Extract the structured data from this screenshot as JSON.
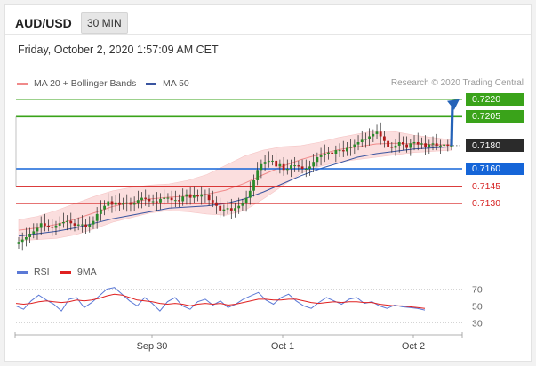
{
  "header": {
    "symbol": "AUD/USD",
    "timeframe": "30 MIN"
  },
  "datetime": "Friday, October 2, 2020 1:57:09 AM CET",
  "legend": {
    "ma20": {
      "label": "MA 20 + Bollinger Bands",
      "color": "#f08a8a"
    },
    "ma50": {
      "label": "MA 50",
      "color": "#3a55a0"
    }
  },
  "credit": "Research © 2020 Trading Central",
  "rsi_legend": {
    "rsi": {
      "label": "RSI",
      "color": "#5b79d6"
    },
    "ma9": {
      "label": "9MA",
      "color": "#e02020"
    }
  },
  "chart_data": [
    {
      "type": "candlestick",
      "title": "AUD/USD 30 MIN",
      "ylim": [
        0.7091,
        0.7229
      ],
      "x_ticks": [
        "Sep 30",
        "Oct 1",
        "Oct 2"
      ],
      "levels": [
        {
          "value": 0.722,
          "label": "0.7220",
          "kind": "resistance",
          "color": "#3aa31a"
        },
        {
          "value": 0.7205,
          "label": "0.7205",
          "kind": "resistance",
          "color": "#3aa31a"
        },
        {
          "value": 0.718,
          "label": "0.7180",
          "kind": "last",
          "color": "#2b2b2b"
        },
        {
          "value": 0.716,
          "label": "0.7160",
          "kind": "pivot",
          "color": "#1565d8"
        },
        {
          "value": 0.7145,
          "label": "0.7145",
          "kind": "support",
          "color": "#d62020"
        },
        {
          "value": 0.713,
          "label": "0.7130",
          "kind": "support",
          "color": "#d62020"
        }
      ],
      "close_series": [
        0.7097,
        0.7099,
        0.7101,
        0.7104,
        0.7106,
        0.7109,
        0.7113,
        0.7111,
        0.711,
        0.7109,
        0.7111,
        0.7113,
        0.7114,
        0.7115,
        0.7113,
        0.7111,
        0.7112,
        0.7112,
        0.711,
        0.7112,
        0.7115,
        0.7121,
        0.7125,
        0.7128,
        0.7132,
        0.7129,
        0.7131,
        0.7129,
        0.713,
        0.7131,
        0.7129,
        0.713,
        0.7133,
        0.7135,
        0.7134,
        0.7132,
        0.7132,
        0.7131,
        0.7134,
        0.7135,
        0.7135,
        0.7133,
        0.7133,
        0.7132,
        0.7136,
        0.7138,
        0.7135,
        0.7137,
        0.7136,
        0.7138,
        0.7137,
        0.7133,
        0.7131,
        0.7128,
        0.7124,
        0.7125,
        0.7126,
        0.7124,
        0.7126,
        0.7128,
        0.713,
        0.7135,
        0.7141,
        0.715,
        0.7159,
        0.7164,
        0.7166,
        0.7167,
        0.7167,
        0.7162,
        0.7164,
        0.7159,
        0.716,
        0.7163,
        0.7163,
        0.7162,
        0.716,
        0.716,
        0.7162,
        0.7166,
        0.717,
        0.7172,
        0.7173,
        0.7174,
        0.7173,
        0.7176,
        0.7176,
        0.7175,
        0.7178,
        0.7179,
        0.7181,
        0.7183,
        0.7185,
        0.7186,
        0.7188,
        0.719,
        0.7192,
        0.7188,
        0.7184,
        0.7179,
        0.7178,
        0.718,
        0.7183,
        0.7181,
        0.7178,
        0.7182,
        0.7183,
        0.7181,
        0.7182,
        0.7179,
        0.7181,
        0.7182,
        0.718,
        0.718,
        0.7181,
        0.718,
        0.718
      ],
      "ma20_upper": [
        0.7116,
        0.7119,
        0.7124,
        0.713,
        0.7136,
        0.7141,
        0.7144,
        0.7146,
        0.7147,
        0.715,
        0.7155,
        0.7163,
        0.7171,
        0.7176,
        0.7179,
        0.718,
        0.7183,
        0.7187,
        0.719,
        0.7193,
        0.7192,
        0.7189,
        0.7187,
        0.7185
      ],
      "ma20_lower": [
        0.7098,
        0.7099,
        0.71,
        0.7103,
        0.7108,
        0.7114,
        0.7118,
        0.7122,
        0.7124,
        0.7123,
        0.7121,
        0.712,
        0.7124,
        0.7134,
        0.7145,
        0.7156,
        0.7162,
        0.7166,
        0.7168,
        0.717,
        0.7172,
        0.7174,
        0.7175,
        0.7176
      ],
      "ma50": [
        0.7102,
        0.7104,
        0.7106,
        0.7109,
        0.7113,
        0.7117,
        0.712,
        0.7123,
        0.7126,
        0.7127,
        0.7128,
        0.713,
        0.7134,
        0.714,
        0.7147,
        0.7154,
        0.716,
        0.7165,
        0.717,
        0.7173,
        0.7175,
        0.7177,
        0.7178,
        0.7179
      ]
    },
    {
      "type": "line",
      "title": "RSI",
      "ylim": [
        25,
        78
      ],
      "y_ticks": [
        70,
        50,
        30
      ],
      "series": [
        {
          "name": "RSI",
          "values": [
            50,
            46,
            56,
            63,
            57,
            52,
            44,
            58,
            60,
            48,
            54,
            62,
            70,
            72,
            64,
            56,
            50,
            60,
            53,
            44,
            55,
            60,
            50,
            46,
            55,
            58,
            51,
            56,
            48,
            52,
            58,
            62,
            66,
            57,
            52,
            60,
            64,
            56,
            50,
            47,
            54,
            60,
            56,
            52,
            58,
            60,
            53,
            55,
            50,
            47,
            51,
            49,
            48,
            47,
            45
          ]
        },
        {
          "name": "9MA",
          "values": [
            53,
            52,
            53,
            55,
            56,
            55,
            54,
            55,
            57,
            56,
            57,
            59,
            62,
            64,
            63,
            60,
            57,
            56,
            55,
            53,
            52,
            53,
            52,
            50,
            52,
            53,
            52,
            53,
            51,
            52,
            54,
            56,
            58,
            58,
            57,
            57,
            58,
            58,
            56,
            54,
            53,
            54,
            55,
            54,
            55,
            55,
            54,
            54,
            52,
            51,
            50,
            50,
            49,
            48,
            47
          ]
        }
      ]
    }
  ]
}
